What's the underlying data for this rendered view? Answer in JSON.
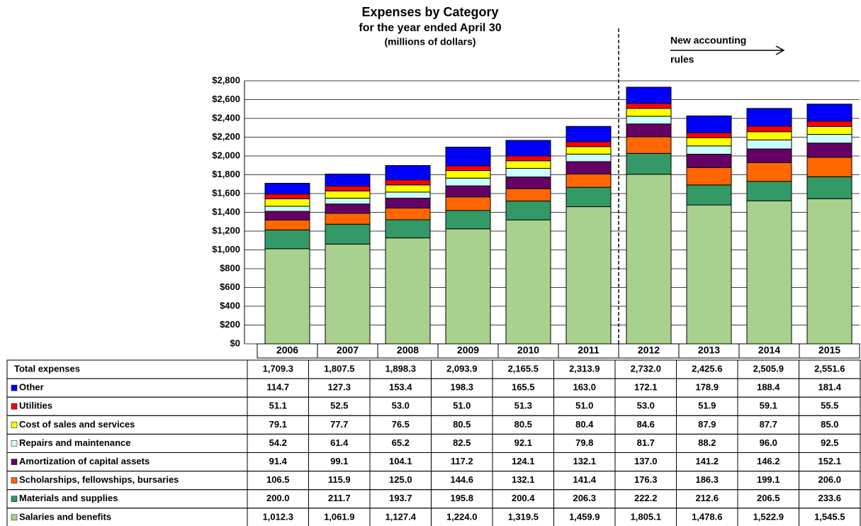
{
  "chart_data": {
    "type": "stacked_bar",
    "title": "Expenses by Category",
    "subtitle": "for the year ended April 30",
    "units": "(millions of dollars)",
    "annotation": [
      "New accounting",
      "rules"
    ],
    "categories": [
      "2006",
      "2007",
      "2008",
      "2009",
      "2010",
      "2011",
      "2012",
      "2013",
      "2014",
      "2015"
    ],
    "ylim": [
      0,
      2800
    ],
    "yticks": [
      {
        "value": 0,
        "label": "$0"
      },
      {
        "value": 200,
        "label": "$200"
      },
      {
        "value": 400,
        "label": "$400"
      },
      {
        "value": 600,
        "label": "$600"
      },
      {
        "value": 800,
        "label": "$800"
      },
      {
        "value": 1000,
        "label": "$1,000"
      },
      {
        "value": 1200,
        "label": "$1,200"
      },
      {
        "value": 1400,
        "label": "$1,400"
      },
      {
        "value": 1600,
        "label": "$1,600"
      },
      {
        "value": 1800,
        "label": "$1,800"
      },
      {
        "value": 2000,
        "label": "$2,000"
      },
      {
        "value": 2200,
        "label": "$2,200"
      },
      {
        "value": 2400,
        "label": "$2,400"
      },
      {
        "value": 2600,
        "label": "$2,600"
      },
      {
        "value": 2800,
        "label": "$2,800"
      }
    ],
    "grid": true,
    "total": {
      "name": "Total expenses",
      "values": [
        1709.3,
        1807.5,
        1898.3,
        2093.9,
        2165.5,
        2313.9,
        2732.0,
        2425.6,
        2505.9,
        2551.6
      ],
      "value_labels": [
        "1,709.3",
        "1,807.5",
        "1,898.3",
        "2,093.9",
        "2,165.5",
        "2,313.9",
        "2,732.0",
        "2,425.6",
        "2,505.9",
        "2,551.6"
      ]
    },
    "series": [
      {
        "name": "Other",
        "color": "#0000ff",
        "values": [
          114.7,
          127.3,
          153.4,
          198.3,
          165.5,
          163.0,
          172.1,
          178.9,
          188.4,
          181.4
        ],
        "value_labels": [
          "114.7",
          "127.3",
          "153.4",
          "198.3",
          "165.5",
          "163.0",
          "172.1",
          "178.9",
          "188.4",
          "181.4"
        ]
      },
      {
        "name": "Utilities",
        "color": "#ff0000",
        "values": [
          51.1,
          52.5,
          53.0,
          51.0,
          51.3,
          51.0,
          53.0,
          51.9,
          59.1,
          55.5
        ],
        "value_labels": [
          "51.1",
          "52.5",
          "53.0",
          "51.0",
          "51.3",
          "51.0",
          "53.0",
          "51.9",
          "59.1",
          "55.5"
        ]
      },
      {
        "name": "Cost of sales and services",
        "color": "#ffff00",
        "values": [
          79.1,
          77.7,
          76.5,
          80.5,
          80.5,
          80.4,
          84.6,
          87.9,
          87.7,
          85.0
        ],
        "value_labels": [
          "79.1",
          "77.7",
          "76.5",
          "80.5",
          "80.5",
          "80.4",
          "84.6",
          "87.9",
          "87.7",
          "85.0"
        ]
      },
      {
        "name": "Repairs and maintenance",
        "color": "#ccffff",
        "values": [
          54.2,
          61.4,
          65.2,
          82.5,
          92.1,
          79.8,
          81.7,
          88.2,
          96.0,
          92.5
        ],
        "value_labels": [
          "54.2",
          "61.4",
          "65.2",
          "82.5",
          "92.1",
          "79.8",
          "81.7",
          "88.2",
          "96.0",
          "92.5"
        ]
      },
      {
        "name": "Amortization of capital assets",
        "color": "#660066",
        "values": [
          91.4,
          99.1,
          104.1,
          117.2,
          124.1,
          132.1,
          137.0,
          141.2,
          146.2,
          152.1
        ],
        "value_labels": [
          "91.4",
          "99.1",
          "104.1",
          "117.2",
          "124.1",
          "132.1",
          "137.0",
          "141.2",
          "146.2",
          "152.1"
        ]
      },
      {
        "name": "Scholarships, fellowships, bursaries",
        "color": "#ff6600",
        "values": [
          106.5,
          115.9,
          125.0,
          144.6,
          132.1,
          141.4,
          176.3,
          186.3,
          199.1,
          206.0
        ],
        "value_labels": [
          "106.5",
          "115.9",
          "125.0",
          "144.6",
          "132.1",
          "141.4",
          "176.3",
          "186.3",
          "199.1",
          "206.0"
        ]
      },
      {
        "name": "Materials and supplies",
        "color": "#339966",
        "values": [
          200.0,
          211.7,
          193.7,
          195.8,
          200.4,
          206.3,
          222.2,
          212.6,
          206.5,
          233.6
        ],
        "value_labels": [
          "200.0",
          "211.7",
          "193.7",
          "195.8",
          "200.4",
          "206.3",
          "222.2",
          "212.6",
          "206.5",
          "233.6"
        ]
      },
      {
        "name": "Salaries and benefits",
        "color": "#a9d18e",
        "values": [
          1012.3,
          1061.9,
          1127.4,
          1224.0,
          1319.5,
          1459.9,
          1805.1,
          1478.6,
          1522.9,
          1545.5
        ],
        "value_labels": [
          "1,012.3",
          "1,061.9",
          "1,127.4",
          "1,224.0",
          "1,319.5",
          "1,459.9",
          "1,805.1",
          "1,478.6",
          "1,522.9",
          "1,545.5"
        ]
      }
    ]
  }
}
